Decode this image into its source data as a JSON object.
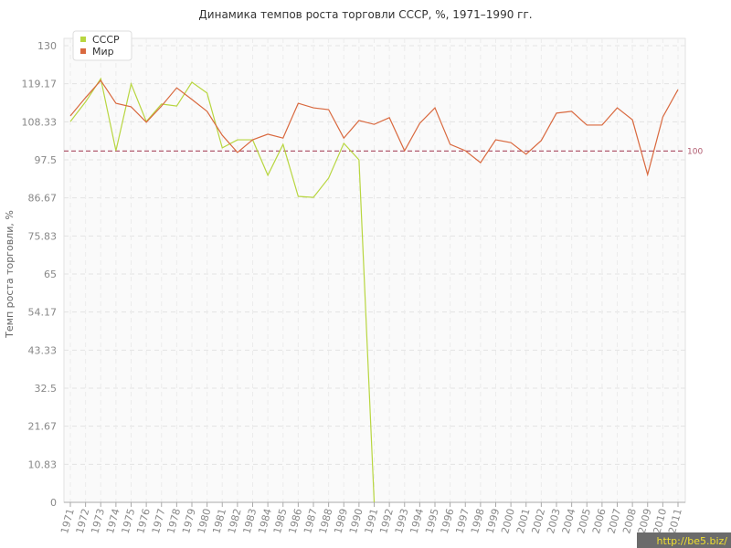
{
  "chart_data": {
    "type": "line",
    "title": "Динамика темпов роста торговли СССР, %, 1971–1990 гг.",
    "y_label": "Темп роста торговли, %",
    "watermark": "http://be5.biz/",
    "x": [
      1971,
      1972,
      1973,
      1974,
      1975,
      1976,
      1977,
      1978,
      1979,
      1980,
      1981,
      1982,
      1983,
      1984,
      1985,
      1986,
      1987,
      1988,
      1989,
      1990,
      1991,
      1992,
      1993,
      1994,
      1995,
      1996,
      1997,
      1998,
      1999,
      2000,
      2001,
      2002,
      2003,
      2004,
      2005,
      2006,
      2007,
      2008,
      2009,
      2010,
      2011
    ],
    "xlim": [
      1971,
      2011
    ],
    "ylim": [
      0,
      130
    ],
    "yticks": [
      0,
      10.83,
      21.67,
      32.5,
      43.33,
      54.17,
      65,
      75.83,
      86.67,
      97.5,
      108.33,
      119.17,
      130
    ],
    "grid": true,
    "legend": "top-left",
    "reference_line": 100,
    "reference_color": "#b05a6e",
    "series": [
      {
        "name": "СССР",
        "color": "#b8d640",
        "values": [
          108.4,
          114,
          120.6,
          100.1,
          119.1,
          108.4,
          113.4,
          112.8,
          119.6,
          116.5,
          100.9,
          103.2,
          103.2,
          93.1,
          101.9,
          87.1,
          86.8,
          92.3,
          102.2,
          97.5,
          0,
          null,
          null,
          null,
          null,
          null,
          null,
          null,
          null,
          null,
          null,
          null,
          null,
          null,
          null,
          null,
          null,
          null,
          null,
          null,
          null
        ]
      },
      {
        "name": "Мир",
        "color": "#d9693f",
        "values": [
          110,
          115.2,
          120.1,
          113.6,
          112.6,
          108.2,
          112.8,
          118,
          114.7,
          111.3,
          104.5,
          99.6,
          103.2,
          104.8,
          103.7,
          113.6,
          112.3,
          111.8,
          103.7,
          108.7,
          107.6,
          109.5,
          100.1,
          107.9,
          112.3,
          101.9,
          100.1,
          96.7,
          103.2,
          102.4,
          99.1,
          103,
          110.8,
          111.3,
          107.4,
          107.4,
          112.3,
          108.9,
          93.3,
          109.7,
          117.5
        ]
      }
    ]
  }
}
